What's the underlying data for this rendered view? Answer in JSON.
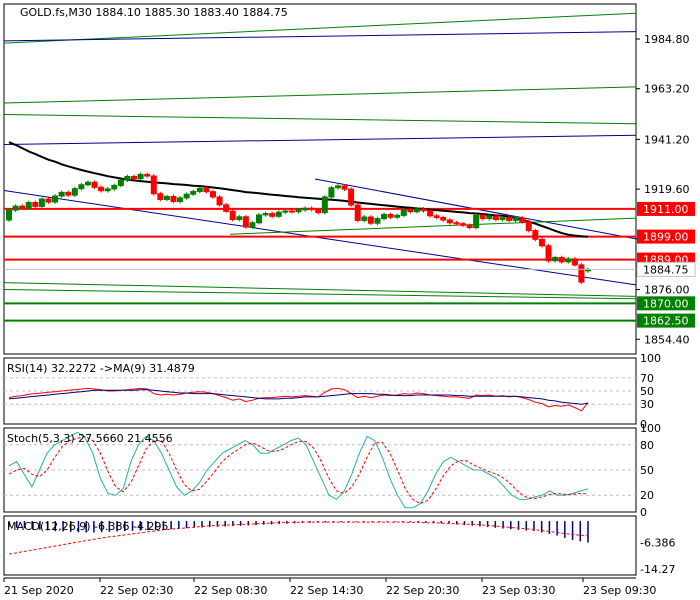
{
  "main_title": "GOLD.fs,M30  1884.10 1885.30 1883.40 1884.75",
  "colors": {
    "bull": "#008000",
    "bear": "#ff0000",
    "ma": "#000000",
    "channel_blue": "#00008b",
    "channel_green": "#008000",
    "level_red": "#ff0000",
    "level_green": "#008000",
    "rsi_line": "#000080",
    "rsi_signal": "#ff0000",
    "stoch_main": "#20b2aa",
    "stoch_signal": "#ff0000",
    "macd_hist": "#000080",
    "macd_signal": "#ff0000"
  },
  "chart_data": [
    {
      "type": "candlestick",
      "symbol": "GOLD.fs",
      "timeframe": "M30",
      "last_ohlc": {
        "open": 1884.1,
        "high": 1885.3,
        "low": 1883.4,
        "close": 1884.75
      },
      "y_ticks": [
        "1984.80",
        "1963.20",
        "1941.20",
        "1919.60",
        "1898.00",
        "1876.00",
        "1854.40"
      ],
      "ylim": [
        1848,
        2000
      ],
      "x_ticks": [
        "21 Sep 2020",
        "22 Sep 02:30",
        "22 Sep 08:30",
        "22 Sep 14:30",
        "22 Sep 20:30",
        "23 Sep 03:30",
        "23 Sep 09:30"
      ],
      "closes": [
        1910.5,
        1912.2,
        1911.4,
        1913.8,
        1912.1,
        1915.3,
        1914.0,
        1916.6,
        1918.2,
        1917.0,
        1919.8,
        1921.5,
        1922.6,
        1920.4,
        1918.9,
        1919.7,
        1921.2,
        1923.5,
        1925.1,
        1924.2,
        1926.0,
        1925.3,
        1917.6,
        1915.1,
        1916.4,
        1914.2,
        1915.8,
        1917.4,
        1918.6,
        1919.9,
        1918.5,
        1916.2,
        1912.8,
        1910.0,
        1906.4,
        1907.6,
        1903.2,
        1905.0,
        1908.4,
        1909.0,
        1907.8,
        1909.6,
        1910.1,
        1909.8,
        1910.6,
        1911.3,
        1910.7,
        1909.4,
        1916.2,
        1920.2,
        1921.0,
        1919.6,
        1912.7,
        1906.0,
        1907.5,
        1904.8,
        1906.8,
        1908.6,
        1907.4,
        1908.2,
        1910.6,
        1909.8,
        1911.0,
        1910.2,
        1908.0,
        1907.3,
        1906.2,
        1905.0,
        1904.6,
        1903.9,
        1902.9,
        1908.2,
        1906.8,
        1907.9,
        1906.4,
        1907.2,
        1906.0,
        1907.1,
        1905.4,
        1901.6,
        1897.8,
        1895.0,
        1888.5,
        1889.9,
        1888.0,
        1889.3,
        1886.7,
        1879.2,
        1884.75
      ],
      "opens": [
        1906.2,
        1910.5,
        1912.2,
        1911.4,
        1913.8,
        1912.1,
        1915.3,
        1914.0,
        1916.6,
        1918.2,
        1917.0,
        1919.8,
        1921.5,
        1922.6,
        1920.4,
        1918.9,
        1919.7,
        1921.2,
        1923.5,
        1925.1,
        1924.2,
        1926.0,
        1925.3,
        1917.6,
        1915.1,
        1916.4,
        1914.2,
        1915.8,
        1917.4,
        1918.6,
        1919.9,
        1918.5,
        1916.2,
        1912.8,
        1910.0,
        1906.4,
        1907.6,
        1903.2,
        1905.0,
        1908.4,
        1909.0,
        1907.8,
        1909.6,
        1910.1,
        1909.8,
        1910.6,
        1911.3,
        1910.7,
        1909.4,
        1916.2,
        1920.2,
        1921.0,
        1919.6,
        1912.7,
        1906.0,
        1907.5,
        1904.8,
        1906.8,
        1908.6,
        1907.4,
        1908.2,
        1910.6,
        1909.8,
        1911.0,
        1910.2,
        1908.0,
        1907.3,
        1906.2,
        1905.0,
        1904.6,
        1903.9,
        1902.9,
        1908.2,
        1906.8,
        1907.9,
        1906.4,
        1907.2,
        1906.0,
        1907.1,
        1905.4,
        1901.6,
        1897.8,
        1895.0,
        1888.5,
        1889.9,
        1888.0,
        1889.3,
        1886.7,
        1884.1
      ],
      "ma": [
        1940.0,
        1938.8,
        1937.4,
        1936.0,
        1934.8,
        1933.6,
        1932.4,
        1931.5,
        1930.4,
        1929.5,
        1928.7,
        1927.9,
        1927.2,
        1926.5,
        1925.9,
        1925.2,
        1924.7,
        1924.2,
        1923.7,
        1923.4,
        1923.1,
        1922.8,
        1922.5,
        1922.3,
        1922.1,
        1921.8,
        1921.6,
        1921.4,
        1921.1,
        1920.9,
        1920.6,
        1920.3,
        1920.0,
        1919.6,
        1919.2,
        1918.8,
        1918.3,
        1918.1,
        1917.8,
        1917.5,
        1917.2,
        1916.9,
        1916.6,
        1916.4,
        1916.1,
        1915.9,
        1915.6,
        1915.4,
        1915.2,
        1915.0,
        1914.8,
        1914.5,
        1914.1,
        1913.8,
        1913.5,
        1913.2,
        1912.9,
        1912.6,
        1912.3,
        1912.0,
        1911.7,
        1911.5,
        1911.2,
        1911.0,
        1910.7,
        1910.5,
        1910.2,
        1910.0,
        1909.7,
        1909.5,
        1909.2,
        1909.0,
        1908.8,
        1908.5,
        1908.2,
        1908.0,
        1907.6,
        1907.0,
        1906.3,
        1905.5,
        1904.6,
        1903.6,
        1902.6,
        1901.5,
        1900.5,
        1899.8,
        1899.4,
        1899.1,
        1898.9
      ],
      "levels": [
        {
          "label": "1911.00",
          "value": 1911.0,
          "color": "red"
        },
        {
          "label": "1899.00",
          "value": 1899.0,
          "color": "red"
        },
        {
          "label": "1889.00",
          "value": 1889.0,
          "color": "red"
        },
        {
          "label": "1870.00",
          "value": 1870.0,
          "color": "green"
        },
        {
          "label": "1862.50",
          "value": 1862.5,
          "color": "green"
        }
      ],
      "price_tag": "1884.75"
    },
    {
      "type": "line",
      "indicator": "RSI",
      "label": "RSI(14) 32.2272  ->MA(9) 31.4879",
      "y_ticks": [
        "100",
        "70",
        "50",
        "30",
        "0"
      ],
      "ylim": [
        0,
        100
      ],
      "rsi": [
        40,
        42,
        43,
        45,
        46,
        47,
        48,
        49,
        50,
        51,
        52,
        53,
        54,
        53,
        52,
        50,
        50,
        51,
        52,
        53,
        54,
        53,
        46,
        44,
        45,
        44,
        45,
        47,
        48,
        49,
        48,
        46,
        43,
        40,
        36,
        38,
        34,
        36,
        39,
        40,
        40,
        41,
        42,
        41,
        42,
        43,
        42,
        41,
        48,
        53,
        54,
        52,
        46,
        40,
        42,
        40,
        42,
        44,
        43,
        44,
        46,
        45,
        47,
        46,
        44,
        43,
        42,
        41,
        41,
        40,
        39,
        44,
        43,
        44,
        42,
        43,
        41,
        42,
        40,
        37,
        33,
        31,
        26,
        28,
        27,
        29,
        25,
        20,
        32.2272
      ],
      "ma9": [
        38,
        39,
        40,
        41,
        42,
        43,
        44,
        45,
        46,
        47,
        48,
        49,
        50,
        51,
        51,
        51,
        51,
        51,
        51,
        51,
        52,
        52,
        51,
        50,
        49,
        48,
        47,
        47,
        46,
        46,
        46,
        46,
        45,
        44,
        43,
        42,
        41,
        40,
        39,
        38,
        38,
        38,
        39,
        39,
        40,
        41,
        41,
        41,
        42,
        43,
        44,
        45,
        46,
        46,
        46,
        46,
        45,
        45,
        44,
        43,
        43,
        43,
        44,
        44,
        44,
        44,
        44,
        44,
        43,
        43,
        42,
        42,
        42,
        42,
        42,
        42,
        42,
        42,
        41,
        40,
        39,
        38,
        36,
        35,
        33,
        32,
        31,
        30,
        31.4879
      ]
    },
    {
      "type": "line",
      "indicator": "Stochastic",
      "label": "Stoch(5,3,3) 27.5660 21.4556",
      "y_ticks": [
        "100",
        "80",
        "50",
        "20",
        "0"
      ],
      "ylim": [
        0,
        100
      ],
      "main": [
        55,
        60,
        45,
        30,
        50,
        70,
        80,
        85,
        90,
        95,
        88,
        70,
        40,
        22,
        20,
        28,
        60,
        80,
        90,
        85,
        70,
        50,
        30,
        20,
        25,
        35,
        50,
        60,
        70,
        75,
        80,
        85,
        80,
        70,
        70,
        75,
        80,
        85,
        88,
        80,
        60,
        40,
        20,
        15,
        25,
        45,
        70,
        90,
        85,
        65,
        40,
        20,
        5,
        5,
        10,
        25,
        45,
        60,
        65,
        60,
        55,
        50,
        50,
        45,
        40,
        30,
        20,
        15,
        15,
        18,
        20,
        25,
        20,
        20,
        22,
        25,
        27.566
      ],
      "signal": [
        45,
        50,
        52,
        45,
        42,
        50,
        65,
        78,
        85,
        88,
        90,
        85,
        70,
        48,
        30,
        24,
        35,
        55,
        75,
        85,
        85,
        70,
        50,
        33,
        25,
        27,
        37,
        48,
        60,
        68,
        74,
        80,
        82,
        78,
        73,
        72,
        75,
        80,
        84,
        84,
        76,
        60,
        40,
        25,
        22,
        30,
        45,
        65,
        82,
        83,
        70,
        50,
        28,
        15,
        10,
        14,
        27,
        43,
        55,
        61,
        61,
        56,
        52,
        48,
        45,
        40,
        32,
        23,
        17,
        16,
        18,
        21,
        22,
        21,
        21,
        22,
        21.4556
      ]
    },
    {
      "type": "bar",
      "indicator": "MACD",
      "label": "MACD(12,26,9) -6.386 -4.295",
      "y_ticks": [
        "-6.386",
        "-14.27"
      ],
      "ylim": [
        -16,
        1.5
      ],
      "histogram": [
        -1.8,
        -2.0,
        -2.1,
        -2.4,
        -2.6,
        -2.8,
        -3.0,
        -3.1,
        -3.2,
        -3.3,
        -3.4,
        -3.4,
        -3.3,
        -3.2,
        -3.1,
        -3.0,
        -2.9,
        -2.8,
        -2.7,
        -2.6,
        -2.5,
        -2.4,
        -2.2,
        -2.1,
        -2.0,
        -1.9,
        -1.8,
        -1.7,
        -1.6,
        -1.5,
        -1.4,
        -1.3,
        -1.2,
        -1.1,
        -1.0,
        -0.9,
        -0.8,
        -0.7,
        -0.6,
        -0.5,
        -0.4,
        -0.4,
        -0.3,
        -0.3,
        -0.3,
        -0.2,
        -0.2,
        -0.2,
        -0.2,
        -0.2,
        -0.2,
        -0.3,
        -0.3,
        -0.4,
        -0.5,
        -0.6,
        -0.7,
        -0.8,
        -1.0,
        -1.2,
        -1.4,
        -1.6,
        -1.8,
        -2.0,
        -2.2,
        -2.4,
        -2.6,
        -2.8,
        -3.0,
        -3.4,
        -3.8,
        -4.3,
        -5.0,
        -5.6,
        -6.0,
        -6.386
      ],
      "signal": [
        -9.8,
        -9.4,
        -9.0,
        -8.6,
        -8.2,
        -7.8,
        -7.4,
        -7.0,
        -6.6,
        -6.2,
        -5.8,
        -5.4,
        -5.0,
        -4.7,
        -4.4,
        -4.1,
        -3.8,
        -3.5,
        -3.2,
        -2.9,
        -2.6,
        -2.4,
        -2.2,
        -2.0,
        -1.8,
        -1.6,
        -1.4,
        -1.3,
        -1.2,
        -1.1,
        -1.0,
        -0.9,
        -0.8,
        -0.7,
        -0.6,
        -0.5,
        -0.4,
        -0.4,
        -0.3,
        -0.3,
        -0.3,
        -0.3,
        -0.3,
        -0.3,
        -0.3,
        -0.3,
        -0.3,
        -0.3,
        -0.3,
        -0.3,
        -0.3,
        -0.3,
        -0.4,
        -0.4,
        -0.5,
        -0.5,
        -0.6,
        -0.7,
        -0.8,
        -0.9,
        -1.0,
        -1.1,
        -1.3,
        -1.5,
        -1.7,
        -1.9,
        -2.1,
        -2.3,
        -2.5,
        -2.8,
        -3.1,
        -3.4,
        -3.7,
        -4.0,
        -4.2,
        -4.295
      ]
    }
  ]
}
